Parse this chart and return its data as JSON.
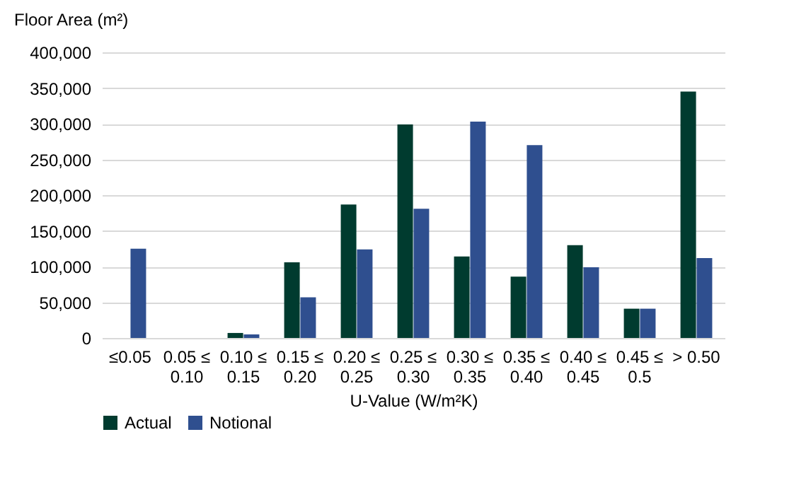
{
  "chart_data": {
    "type": "bar",
    "ylabel": "Floor Area (m²)",
    "xlabel": "U-Value (W/m²K)",
    "categories": [
      "≤0.05",
      "0.05 ≤ 0.10",
      "0.10 ≤ 0.15",
      "0.15 ≤ 0.20",
      "0.20 ≤ 0.25",
      "0.25 ≤ 0.30",
      "0.30 ≤ 0.35",
      "0.35 ≤ 0.40",
      "0.40 ≤ 0.45",
      "0.45 ≤ 0.5",
      "> 0.50"
    ],
    "series": [
      {
        "name": "Actual",
        "color": "#003b2f",
        "values": [
          0,
          0,
          7000,
          106000,
          187000,
          299000,
          114000,
          86000,
          130000,
          41000,
          345000
        ]
      },
      {
        "name": "Notional",
        "color": "#2f4f8f",
        "values": [
          125000,
          0,
          5000,
          57000,
          124000,
          181000,
          303000,
          270000,
          99000,
          41000,
          112000
        ]
      }
    ],
    "ylim": [
      0,
      400000
    ],
    "yticks": [
      0,
      {
        "value": 50000,
        "label": "50,000"
      },
      {
        "value": 100000,
        "label": "100,000"
      },
      {
        "value": 150000,
        "label": "150,000"
      },
      {
        "value": 200000,
        "label": "200,000"
      },
      {
        "value": 250000,
        "label": "250,000"
      },
      {
        "value": 300000,
        "label": "300,000"
      },
      {
        "value": 350000,
        "label": "350,000"
      },
      {
        "value": 400000,
        "label": "400,000"
      }
    ],
    "grid": "y",
    "legend": "bottom"
  }
}
